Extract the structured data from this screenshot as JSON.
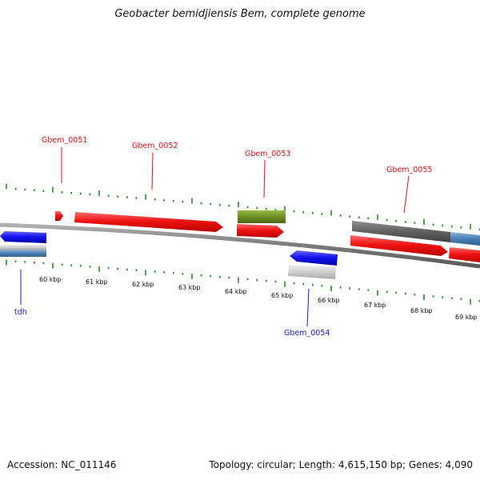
{
  "title": "Geobacter bemidjiensis Bem, complete genome",
  "footer": {
    "accession": "Accession: NC_011146",
    "topology": "Topology: circular; Length: 4,615,150 bp; Genes: 4,090"
  },
  "genes": [
    {
      "name": "Gbem_0051",
      "strand": "+",
      "color": "#dd1111"
    },
    {
      "name": "Gbem_0052",
      "strand": "+",
      "color": "#dd1111"
    },
    {
      "name": "Gbem_0053",
      "strand": "+",
      "color": "#dd1111"
    },
    {
      "name": "Gbem_0054",
      "strand": "-",
      "color": "#1a1acc"
    },
    {
      "name": "Gbem_0055",
      "strand": "+",
      "color": "#dd1111"
    },
    {
      "name": "tdh",
      "strand": "-",
      "color": "#1a1acc"
    }
  ],
  "kbp_ticks": [
    "60 kbp",
    "61 kbp",
    "62 kbp",
    "63 kbp",
    "64 kbp",
    "65 kbp",
    "66 kbp",
    "67 kbp",
    "68 kbp",
    "69 kbp"
  ],
  "colors": {
    "forward_gene": "#e41a1c",
    "reverse_gene": "#1a1ae0",
    "rna_feature": "#6b8e23",
    "pseudo_feature": "#666666",
    "other_feature": "#4a7fb5",
    "tick": "#2a8a2a",
    "backbone": "#888888"
  }
}
